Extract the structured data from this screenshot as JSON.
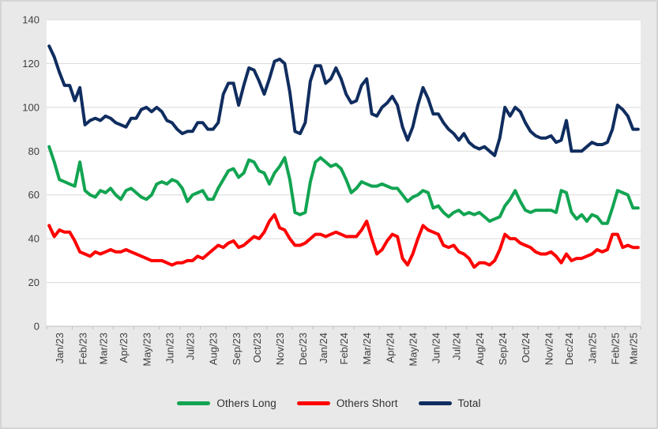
{
  "colors": {
    "chart_background": "#E9E9E9",
    "chart_border": "#D4D4D4",
    "plot_background": "#FFFFFF",
    "gridline": "#D9D9D9",
    "axis_line": "#BFBFBF",
    "tick_mark": "#BFBFBF",
    "label_text": "#3E3E3E"
  },
  "y_axis": {
    "tick_labels": [
      "0",
      "20",
      "40",
      "60",
      "80",
      "100",
      "120",
      "140"
    ]
  },
  "chart_data": {
    "type": "line",
    "title": "",
    "xlabel": "",
    "ylabel": "",
    "x_unit": "weekly observations",
    "ylim": [
      0,
      140
    ],
    "y_tick_step": 20,
    "grid": "horizontal",
    "legend_position": "bottom",
    "months": [
      {
        "label": "Jan/23",
        "weeks": 5
      },
      {
        "label": "Feb/23",
        "weeks": 4
      },
      {
        "label": "Mar/23",
        "weeks": 4
      },
      {
        "label": "Apr/23",
        "weeks": 4
      },
      {
        "label": "May/23",
        "weeks": 5
      },
      {
        "label": "Jun/23",
        "weeks": 4
      },
      {
        "label": "Jul/23",
        "weeks": 4
      },
      {
        "label": "Aug/23",
        "weeks": 5
      },
      {
        "label": "Sep/23",
        "weeks": 4
      },
      {
        "label": "Oct/23",
        "weeks": 4
      },
      {
        "label": "Nov/23",
        "weeks": 5
      },
      {
        "label": "Dec/23",
        "weeks": 4
      },
      {
        "label": "Jan/24",
        "weeks": 4
      },
      {
        "label": "Feb/24",
        "weeks": 4
      },
      {
        "label": "Mar/24",
        "weeks": 5
      },
      {
        "label": "Apr/24",
        "weeks": 4
      },
      {
        "label": "May/24",
        "weeks": 5
      },
      {
        "label": "Jun/24",
        "weeks": 4
      },
      {
        "label": "Jul/24",
        "weeks": 4
      },
      {
        "label": "Aug/24",
        "weeks": 5
      },
      {
        "label": "Sep/24",
        "weeks": 4
      },
      {
        "label": "Oct/24",
        "weeks": 5
      },
      {
        "label": "Nov/24",
        "weeks": 4
      },
      {
        "label": "Dec/24",
        "weeks": 4
      },
      {
        "label": "Jan/25",
        "weeks": 5
      },
      {
        "label": "Feb/25",
        "weeks": 4
      },
      {
        "label": "Mar/25",
        "weeks": 3
      }
    ],
    "series": [
      {
        "name": "Others Long",
        "color": "#12A452",
        "values": [
          82,
          75,
          67,
          66,
          65,
          64,
          75,
          62,
          60,
          59,
          62,
          61,
          63,
          60,
          58,
          62,
          63,
          61,
          59,
          58,
          60,
          65,
          66,
          65,
          67,
          66,
          63,
          57,
          60,
          61,
          62,
          58,
          58,
          63,
          67,
          71,
          72,
          68,
          70,
          76,
          75,
          71,
          70,
          65,
          70,
          73,
          77,
          67,
          52,
          51,
          52,
          66,
          75,
          77,
          75,
          73,
          74,
          72,
          67,
          61,
          63,
          66,
          65,
          64,
          64,
          65,
          64,
          63,
          63,
          60,
          57,
          59,
          60,
          62,
          61,
          54,
          55,
          52,
          50,
          52,
          53,
          51,
          52,
          51,
          52,
          50,
          48,
          49,
          50,
          55,
          58,
          62,
          57,
          53,
          52,
          53,
          53,
          53,
          53,
          52,
          62,
          61,
          52,
          49,
          51,
          48,
          51,
          50,
          47,
          47,
          54,
          62,
          61,
          60,
          54,
          54
        ]
      },
      {
        "name": "Others Short",
        "color": "#FE0000",
        "values": [
          46,
          41,
          44,
          43,
          43,
          39,
          34,
          33,
          32,
          34,
          33,
          34,
          35,
          34,
          34,
          35,
          34,
          33,
          32,
          31,
          30,
          30,
          30,
          29,
          28,
          29,
          29,
          30,
          30,
          32,
          31,
          33,
          35,
          37,
          36,
          38,
          39,
          36,
          37,
          39,
          41,
          40,
          43,
          48,
          51,
          45,
          44,
          40,
          37,
          37,
          38,
          40,
          42,
          42,
          41,
          42,
          43,
          42,
          41,
          41,
          41,
          44,
          48,
          40,
          33,
          35,
          39,
          42,
          41,
          31,
          28,
          33,
          40,
          46,
          44,
          43,
          42,
          37,
          36,
          37,
          34,
          33,
          31,
          27,
          29,
          29,
          28,
          30,
          35,
          42,
          40,
          40,
          38,
          37,
          36,
          34,
          33,
          33,
          34,
          32,
          29,
          33,
          30,
          31,
          31,
          32,
          33,
          35,
          34,
          35,
          42,
          42,
          36,
          37,
          36,
          36
        ]
      },
      {
        "name": "Total",
        "color": "#102D5F",
        "values": [
          128,
          123,
          116,
          110,
          110,
          103,
          109,
          92,
          94,
          95,
          94,
          96,
          95,
          93,
          92,
          91,
          95,
          95,
          99,
          100,
          98,
          100,
          98,
          94,
          93,
          90,
          88,
          89,
          89,
          93,
          93,
          90,
          90,
          93,
          106,
          111,
          111,
          101,
          110,
          118,
          117,
          112,
          106,
          113,
          121,
          122,
          120,
          107,
          89,
          88,
          93,
          112,
          119,
          119,
          111,
          113,
          118,
          113,
          106,
          102,
          103,
          110,
          113,
          97,
          96,
          100,
          102,
          105,
          101,
          91,
          85,
          91,
          101,
          109,
          104,
          97,
          97,
          93,
          90,
          88,
          85,
          88,
          84,
          82,
          81,
          82,
          80,
          78,
          86,
          100,
          96,
          100,
          98,
          93,
          89,
          87,
          86,
          86,
          87,
          84,
          85,
          94,
          80,
          80,
          80,
          82,
          84,
          83,
          83,
          84,
          90,
          101,
          99,
          96,
          90,
          90
        ]
      }
    ]
  }
}
